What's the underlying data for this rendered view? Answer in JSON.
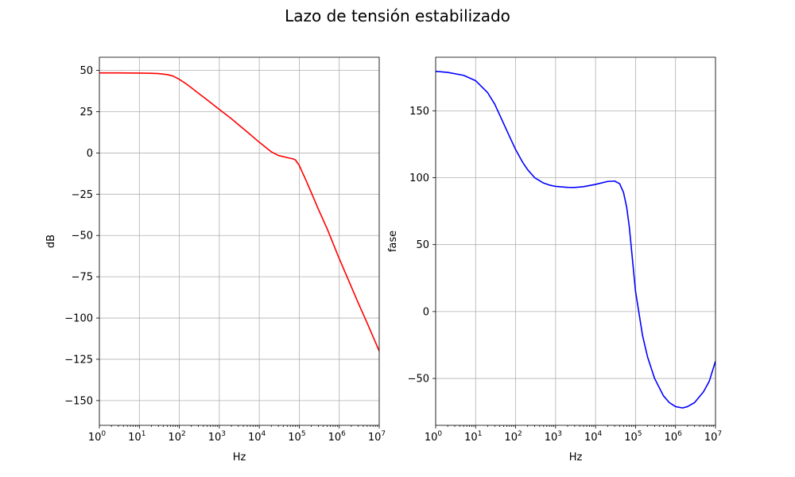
{
  "figure": {
    "title": "Lazo de tensión estabilizado"
  },
  "chart_data": [
    {
      "type": "line",
      "title": "",
      "xlabel": "Hz",
      "ylabel": "dB",
      "xscale": "log",
      "xlim": [
        1,
        10000000
      ],
      "ylim": [
        -165,
        58
      ],
      "xticks": [
        1,
        10,
        100,
        1000,
        10000,
        100000,
        1000000,
        10000000
      ],
      "xtick_labels": [
        {
          "base": "10",
          "exp": "0"
        },
        {
          "base": "10",
          "exp": "1"
        },
        {
          "base": "10",
          "exp": "2"
        },
        {
          "base": "10",
          "exp": "3"
        },
        {
          "base": "10",
          "exp": "4"
        },
        {
          "base": "10",
          "exp": "5"
        },
        {
          "base": "10",
          "exp": "6"
        },
        {
          "base": "10",
          "exp": "7"
        }
      ],
      "yticks": [
        50,
        25,
        0,
        -25,
        -50,
        -75,
        -100,
        -125,
        -150
      ],
      "ytick_labels": [
        "50",
        "25",
        "0",
        "−25",
        "−50",
        "−75",
        "−100",
        "−125",
        "−150"
      ],
      "grid": true,
      "series": [
        {
          "color": "#ff0000",
          "x": [
            1,
            3,
            10,
            20,
            30,
            50,
            70,
            100,
            150,
            200,
            300,
            500,
            1000,
            2000,
            3000,
            5000,
            10000,
            20000,
            30000,
            50000,
            70000,
            80000,
            100000,
            150000,
            200000,
            300000,
            500000,
            1000000,
            2000000,
            3000000,
            5000000,
            10000000
          ],
          "y": [
            48.5,
            48.5,
            48.4,
            48.3,
            48.1,
            47.5,
            46.6,
            44.6,
            41.8,
            39.5,
            36.2,
            32.1,
            26.4,
            20.8,
            17.2,
            12.7,
            6.5,
            0.7,
            -1.5,
            -2.8,
            -3.6,
            -4.2,
            -7.5,
            -17,
            -24,
            -34,
            -46,
            -64,
            -81,
            -91,
            -103,
            -120
          ]
        }
      ]
    },
    {
      "type": "line",
      "title": "",
      "xlabel": "Hz",
      "ylabel": "fase",
      "xscale": "log",
      "xlim": [
        1,
        10000000
      ],
      "ylim": [
        -85,
        190
      ],
      "xticks": [
        1,
        10,
        100,
        1000,
        10000,
        100000,
        1000000,
        10000000
      ],
      "xtick_labels": [
        {
          "base": "10",
          "exp": "0"
        },
        {
          "base": "10",
          "exp": "1"
        },
        {
          "base": "10",
          "exp": "2"
        },
        {
          "base": "10",
          "exp": "3"
        },
        {
          "base": "10",
          "exp": "4"
        },
        {
          "base": "10",
          "exp": "5"
        },
        {
          "base": "10",
          "exp": "6"
        },
        {
          "base": "10",
          "exp": "7"
        }
      ],
      "yticks": [
        150,
        100,
        50,
        0,
        -50
      ],
      "ytick_labels": [
        "150",
        "100",
        "50",
        "0",
        "−50"
      ],
      "grid": true,
      "series": [
        {
          "color": "#0000ff",
          "x": [
            1,
            2,
            5,
            10,
            20,
            30,
            50,
            70,
            100,
            150,
            200,
            300,
            500,
            700,
            1000,
            2000,
            3000,
            5000,
            10000,
            20000,
            30000,
            40000,
            50000,
            60000,
            70000,
            80000,
            100000,
            150000,
            200000,
            300000,
            500000,
            700000,
            1000000,
            1500000,
            2000000,
            3000000,
            5000000,
            7000000,
            10000000
          ],
          "y": [
            179.5,
            178.7,
            176.5,
            172.5,
            163.5,
            155,
            140.5,
            131,
            121,
            111.5,
            106,
            100,
            96,
            94.5,
            93.5,
            92.8,
            92.7,
            93.3,
            95,
            97.2,
            97.5,
            95.5,
            89,
            78,
            63,
            45,
            15,
            -18,
            -34,
            -50,
            -63,
            -68,
            -71,
            -72,
            -71,
            -68,
            -60,
            -52,
            -37
          ]
        }
      ]
    }
  ]
}
